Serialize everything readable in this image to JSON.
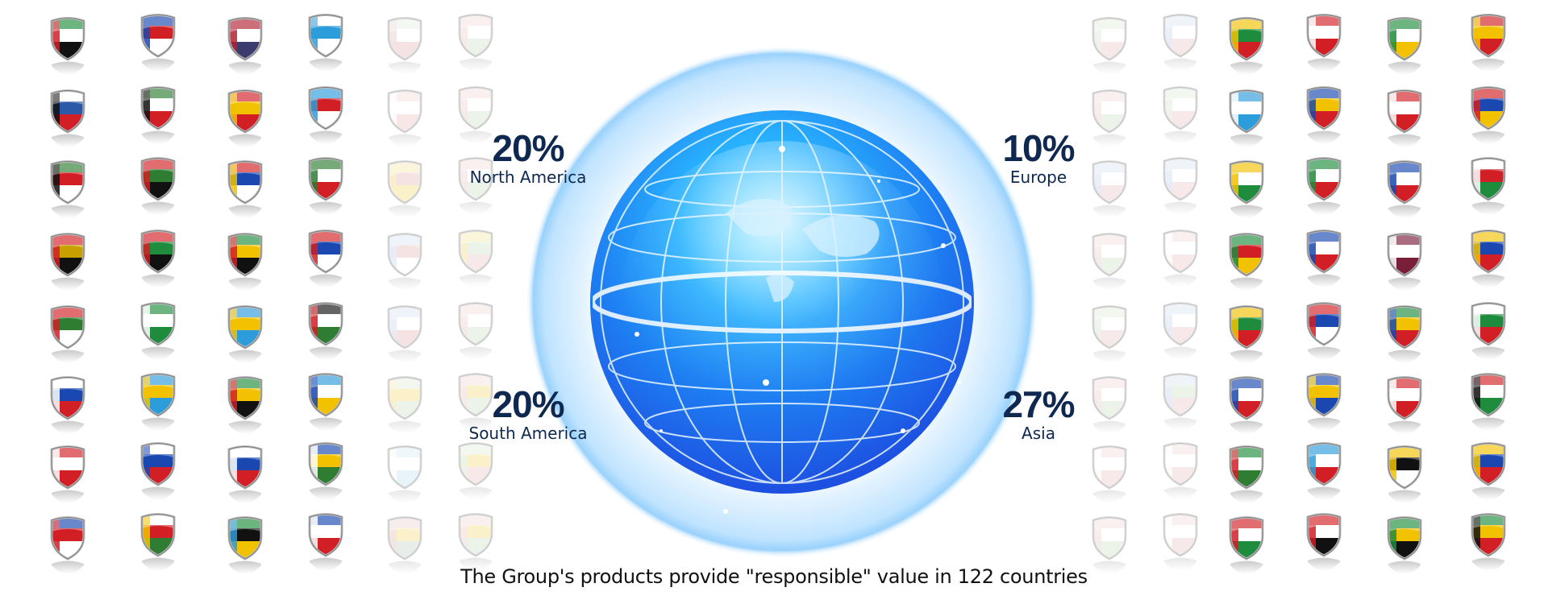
{
  "stats": {
    "north_america": {
      "value": "20%",
      "label": "North America"
    },
    "europe": {
      "value": "10%",
      "label": "Europe"
    },
    "south_america": {
      "value": "20%",
      "label": "South America"
    },
    "asia": {
      "value": "27%",
      "label": "Asia"
    }
  },
  "caption": "The Group's products provide \"responsible\" value in 122 countries",
  "icons": {
    "flag": "flag-shield-icon",
    "globe": "globe-icon"
  },
  "colors": {
    "stat_text": "#0f2850",
    "globe_light": "#3fb8ff",
    "globe_dark": "#1e5ff0",
    "halo": "#bfe3ff"
  },
  "flags": {
    "left": [
      [
        [
          "#1e8c3c",
          "#ffffff",
          "#111111",
          "#d21f26"
        ],
        [
          "#ffffff",
          "#2b58a8",
          "#d21f26",
          "#111111"
        ],
        [
          "#2e7d32",
          "#d21f26",
          "#ffffff",
          "#111111"
        ],
        [
          "#d21f26",
          "#c8a000",
          "#111111",
          "#d21f26"
        ],
        [
          "#d21f26",
          "#2e7d32",
          "#ffffff",
          "#d21f26"
        ],
        [
          "#ffffff",
          "#1a48b0",
          "#d21f26",
          "#ffffff"
        ],
        [
          "#d21f26",
          "#ffffff",
          "#d21f26",
          "#ffffff"
        ],
        [
          "#1a48b0",
          "#d21f26",
          "#ffffff",
          "#d21f26"
        ]
      ],
      [
        [
          "#1a48b0",
          "#d21f26",
          "#ffffff",
          "#1a48b0"
        ],
        [
          "#2e7d32",
          "#ffffff",
          "#d21f26",
          "#111111"
        ],
        [
          "#d21f26",
          "#2e7d32",
          "#111111",
          "#d21f26"
        ],
        [
          "#d21f26",
          "#1e8c3c",
          "#111111",
          "#d21f26"
        ],
        [
          "#1e8c3c",
          "#ffffff",
          "#1e8c3c",
          "#ffffff"
        ],
        [
          "#2d9cdb",
          "#f2c200",
          "#2d9cdb",
          "#f2c200"
        ],
        [
          "#ffffff",
          "#1a48b0",
          "#d21f26",
          "#1a48b0"
        ],
        [
          "#ffffff",
          "#d21f26",
          "#2e7d32",
          "#f2c200"
        ]
      ],
      [
        [
          "#b22234",
          "#ffffff",
          "#3c3b6e",
          "#b22234"
        ],
        [
          "#d21f26",
          "#f2c200",
          "#d21f26",
          "#f2c200"
        ],
        [
          "#d21f26",
          "#1a48b0",
          "#ffffff",
          "#f2c200"
        ],
        [
          "#1e8c3c",
          "#f2c200",
          "#111111",
          "#d21f26"
        ],
        [
          "#2d9cdb",
          "#f2c200",
          "#2d9cdb",
          "#f2c200"
        ],
        [
          "#1e8c3c",
          "#f2c200",
          "#111111",
          "#d21f26"
        ],
        [
          "#ffffff",
          "#1a48b0",
          "#d21f26",
          "#ffffff"
        ],
        [
          "#1e8c3c",
          "#111111",
          "#f2c200",
          "#2d9cdb"
        ]
      ],
      [
        [
          "#ffffff",
          "#2d9cdb",
          "#ffffff",
          "#2d9cdb"
        ],
        [
          "#2d9cdb",
          "#d21f26",
          "#ffffff",
          "#2d9cdb"
        ],
        [
          "#2e7d32",
          "#ffffff",
          "#d21f26",
          "#2e7d32"
        ],
        [
          "#d21f26",
          "#1a48b0",
          "#ffffff",
          "#d21f26"
        ],
        [
          "#111111",
          "#ffffff",
          "#2e7d32",
          "#d21f26"
        ],
        [
          "#2d9cdb",
          "#ffffff",
          "#f2c200",
          "#1a48b0"
        ],
        [
          "#1a48b0",
          "#f2c200",
          "#2e7d32",
          "#ffffff"
        ],
        [
          "#1a48b0",
          "#ffffff",
          "#d21f26",
          "#ffffff"
        ]
      ]
    ],
    "left_faded": [
      [
        [
          "#d8ead9",
          "#ffffff",
          "#e9c3c3",
          "#e9c3c3"
        ],
        [
          "#f0cccc",
          "#ffffff",
          "#f0cccc",
          "#ffffff"
        ],
        [
          "#f5e08a",
          "#e9c3c3",
          "#f5e08a",
          "#f5e08a"
        ],
        [
          "#c9d8f2",
          "#e9c3c3",
          "#ffffff",
          "#c9d8f2"
        ],
        [
          "#c9d8f2",
          "#ffffff",
          "#e9c3c3",
          "#c9d8f2"
        ],
        [
          "#d6e8cf",
          "#f5e08a",
          "#d6e8cf",
          "#f5e08a"
        ],
        [
          "#cfe6f5",
          "#ffffff",
          "#cfe6f5",
          "#ffffff"
        ],
        [
          "#e9c3c3",
          "#f5e08a",
          "#cfd9cf",
          "#e9c3c3"
        ]
      ],
      [
        [
          "#eed0d0",
          "#ffffff",
          "#d6e8cf",
          "#eed0d0"
        ],
        [
          "#eed0d0",
          "#ffffff",
          "#d6e8cf",
          "#eed0d0"
        ],
        [
          "#eed0d0",
          "#ffffff",
          "#d6e8cf",
          "#eed0d0"
        ],
        [
          "#f5e08a",
          "#d6e8cf",
          "#eed0d0",
          "#f5e08a"
        ],
        [
          "#eed0d0",
          "#ffffff",
          "#d6e8cf",
          "#eed0d0"
        ],
        [
          "#eed0d0",
          "#f5e08a",
          "#d6e8cf",
          "#eed0d0"
        ],
        [
          "#d6e8cf",
          "#f5e08a",
          "#eed0d0",
          "#d6e8cf"
        ],
        [
          "#eed0d0",
          "#f5e08a",
          "#d6e8cf",
          "#eed0d0"
        ]
      ]
    ],
    "right_faded": [
      [
        [
          "#d6e8cf",
          "#ffffff",
          "#eed0d0",
          "#d6e8cf"
        ],
        [
          "#eed0d0",
          "#ffffff",
          "#d6e8cf",
          "#eed0d0"
        ],
        [
          "#c9d8f2",
          "#ffffff",
          "#eed0d0",
          "#c9d8f2"
        ],
        [
          "#eed0d0",
          "#ffffff",
          "#d6e8cf",
          "#eed0d0"
        ],
        [
          "#d6e8cf",
          "#ffffff",
          "#eed0d0",
          "#d6e8cf"
        ],
        [
          "#eed0d0",
          "#ffffff",
          "#d6e8cf",
          "#eed0d0"
        ],
        [
          "#eed0d0",
          "#ffffff",
          "#eed0d0",
          "#ffffff"
        ],
        [
          "#eed0d0",
          "#ffffff",
          "#d6e8cf",
          "#eed0d0"
        ]
      ],
      [
        [
          "#c9d8f2",
          "#ffffff",
          "#eed0d0",
          "#c9d8f2"
        ],
        [
          "#d6e8cf",
          "#ffffff",
          "#eed0d0",
          "#d6e8cf"
        ],
        [
          "#c9d8f2",
          "#ffffff",
          "#eed0d0",
          "#c9d8f2"
        ],
        [
          "#eed0d0",
          "#ffffff",
          "#eed0d0",
          "#ffffff"
        ],
        [
          "#c9d8f2",
          "#ffffff",
          "#eed0d0",
          "#c9d8f2"
        ],
        [
          "#c9d8f2",
          "#d6e8cf",
          "#eed0d0",
          "#c9d8f2"
        ],
        [
          "#eed0d0",
          "#ffffff",
          "#eed0d0",
          "#ffffff"
        ],
        [
          "#eed0d0",
          "#ffffff",
          "#eed0d0",
          "#ffffff"
        ]
      ]
    ],
    "right": [
      [
        [
          "#f2c200",
          "#1e8c3c",
          "#d21f26",
          "#f2c200"
        ],
        [
          "#2d9cdb",
          "#ffffff",
          "#2d9cdb",
          "#ffffff"
        ],
        [
          "#f2c200",
          "#ffffff",
          "#1e8c3c",
          "#f2c200"
        ],
        [
          "#1e8c3c",
          "#d21f26",
          "#f2c200",
          "#1e8c3c"
        ],
        [
          "#f2c200",
          "#1e8c3c",
          "#d21f26",
          "#f2c200"
        ],
        [
          "#1a48b0",
          "#ffffff",
          "#d21f26",
          "#1a48b0"
        ],
        [
          "#1e8c3c",
          "#ffffff",
          "#2e7d32",
          "#d21f26"
        ],
        [
          "#d21f26",
          "#ffffff",
          "#1e8c3c",
          "#d21f26"
        ]
      ],
      [
        [
          "#d21f26",
          "#ffffff",
          "#d21f26",
          "#ffffff"
        ],
        [
          "#1a48b0",
          "#f2c200",
          "#d21f26",
          "#1a48b0"
        ],
        [
          "#1e8c3c",
          "#ffffff",
          "#d21f26",
          "#1e8c3c"
        ],
        [
          "#1a48b0",
          "#ffffff",
          "#d21f26",
          "#1a48b0"
        ],
        [
          "#d21f26",
          "#1a48b0",
          "#ffffff",
          "#d21f26"
        ],
        [
          "#1a48b0",
          "#f2c200",
          "#1a48b0",
          "#f2c200"
        ],
        [
          "#2d9cdb",
          "#ffffff",
          "#d21f26",
          "#2d9cdb"
        ],
        [
          "#d21f26",
          "#ffffff",
          "#111111",
          "#d21f26"
        ]
      ],
      [
        [
          "#1e8c3c",
          "#ffffff",
          "#f2c200",
          "#1e8c3c"
        ],
        [
          "#d21f26",
          "#ffffff",
          "#d21f26",
          "#ffffff"
        ],
        [
          "#1a48b0",
          "#ffffff",
          "#d21f26",
          "#1a48b0"
        ],
        [
          "#7a1f3a",
          "#ffffff",
          "#7a1f3a",
          "#ffffff"
        ],
        [
          "#1e8c3c",
          "#f2c200",
          "#d21f26",
          "#1a48b0"
        ],
        [
          "#d21f26",
          "#ffffff",
          "#d21f26",
          "#ffffff"
        ],
        [
          "#f2c200",
          "#111111",
          "#ffffff",
          "#f2c200"
        ],
        [
          "#1e8c3c",
          "#f2c200",
          "#111111",
          "#1e8c3c"
        ]
      ],
      [
        [
          "#d21f26",
          "#f2c200",
          "#d21f26",
          "#f2c200"
        ],
        [
          "#d21f26",
          "#1a48b0",
          "#f2c200",
          "#d21f26"
        ],
        [
          "#ffffff",
          "#d21f26",
          "#1e8c3c",
          "#ffffff"
        ],
        [
          "#f2c200",
          "#1a48b0",
          "#d21f26",
          "#f2c200"
        ],
        [
          "#ffffff",
          "#1e8c3c",
          "#d21f26",
          "#ffffff"
        ],
        [
          "#d21f26",
          "#ffffff",
          "#1e8c3c",
          "#111111"
        ],
        [
          "#f2c200",
          "#1a48b0",
          "#d21f26",
          "#f2c200"
        ],
        [
          "#1e8c3c",
          "#f2c200",
          "#d21f26",
          "#111111"
        ]
      ]
    ]
  }
}
